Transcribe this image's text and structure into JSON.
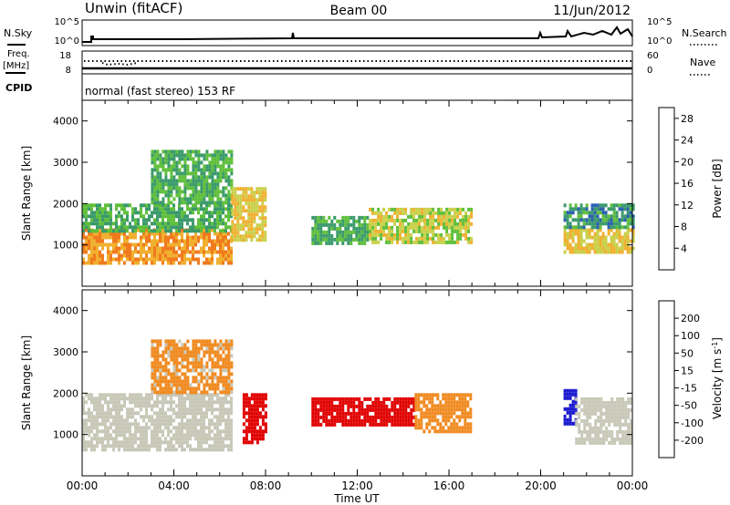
{
  "header": {
    "station": "Unwin (fitACF)",
    "beam": "Beam 00",
    "date": "11/Jun/2012"
  },
  "noise_panel": {
    "left_label": "N.Sky",
    "right_label": "N.Search",
    "left_ticks": [
      "10^5",
      "10^0"
    ],
    "right_ticks": [
      "10^5",
      "10^0"
    ]
  },
  "freq_panel": {
    "left_label_1": "Freq.",
    "left_label_2": "[MHz]",
    "right_label": "Nave",
    "left_ticks": [
      "18",
      "8"
    ],
    "right_ticks": [
      "60",
      "0"
    ]
  },
  "cpid": {
    "label": "CPID",
    "text": "normal (fast stereo) 153 RF"
  },
  "x_axis": {
    "title": "Time UT",
    "ticks": [
      "00:00",
      "04:00",
      "08:00",
      "12:00",
      "16:00",
      "20:00",
      "00:00"
    ]
  },
  "colors": {
    "power": [
      "#1a1aff",
      "#2a5fb0",
      "#3a9a6a",
      "#5fbf3a",
      "#c9d04a",
      "#f0b030",
      "#f07a1e",
      "#e22218"
    ],
    "velocity": [
      "#e00000",
      "#f04a10",
      "#f08a20",
      "#c8c8b8",
      "#c8c8b8",
      "#86c850",
      "#2e7a4a",
      "#1a3aa0",
      "#1a1ad0"
    ]
  },
  "chart_data": [
    {
      "type": "heatmap",
      "title": "",
      "xlabel": "",
      "ylabel": "Slant Range [km]",
      "x_range_hours": [
        0,
        24
      ],
      "ylim": [
        0,
        4500
      ],
      "y_ticks": [
        "1000",
        "2000",
        "3000",
        "4000"
      ],
      "colorbar": {
        "label": "Power [dB]",
        "ticks": [
          "4",
          "8",
          "12",
          "16",
          "20",
          "24",
          "28"
        ],
        "range": [
          0,
          30
        ]
      },
      "regions": [
        {
          "x": [
            0.0,
            6.5
          ],
          "y": [
            600,
            1400
          ],
          "level": 24
        },
        {
          "x": [
            0.0,
            6.5
          ],
          "y": [
            1300,
            2000
          ],
          "level": 12
        },
        {
          "x": [
            3.0,
            6.5
          ],
          "y": [
            2000,
            3300
          ],
          "level": 12
        },
        {
          "x": [
            6.5,
            8.0
          ],
          "y": [
            1100,
            2400
          ],
          "level": 20
        },
        {
          "x": [
            10.0,
            12.5
          ],
          "y": [
            1000,
            1700
          ],
          "level": 12
        },
        {
          "x": [
            12.5,
            17.0
          ],
          "y": [
            1100,
            1900
          ],
          "level": 18
        },
        {
          "x": [
            21.0,
            24.0
          ],
          "y": [
            850,
            1400
          ],
          "level": 20
        },
        {
          "x": [
            21.0,
            24.0
          ],
          "y": [
            1400,
            2000
          ],
          "level": 10
        }
      ]
    },
    {
      "type": "heatmap",
      "title": "",
      "xlabel": "Time UT",
      "ylabel": "Slant Range [km]",
      "x_range_hours": [
        0,
        24
      ],
      "ylim": [
        0,
        4500
      ],
      "y_ticks": [
        "1000",
        "2000",
        "3000",
        "4000"
      ],
      "colorbar": {
        "label": "Velocity [m s^-1]",
        "ticks": [
          "200",
          "100",
          "50",
          "15",
          "-15",
          "-50",
          "-100",
          "-200"
        ],
        "range": [
          -250,
          250
        ]
      },
      "regions": [
        {
          "x": [
            0.0,
            6.5
          ],
          "y": [
            600,
            2000
          ],
          "level": 0
        },
        {
          "x": [
            3.0,
            6.5
          ],
          "y": [
            2000,
            3300
          ],
          "level": -40
        },
        {
          "x": [
            7.0,
            8.0
          ],
          "y": [
            800,
            2000
          ],
          "level": -200
        },
        {
          "x": [
            10.0,
            14.5
          ],
          "y": [
            1200,
            1900
          ],
          "level": -200
        },
        {
          "x": [
            14.5,
            17.0
          ],
          "y": [
            1100,
            2000
          ],
          "level": -60
        },
        {
          "x": [
            21.0,
            21.5
          ],
          "y": [
            1300,
            2100
          ],
          "level": 200
        },
        {
          "x": [
            21.5,
            24.0
          ],
          "y": [
            800,
            1900
          ],
          "level": 0
        }
      ]
    }
  ]
}
